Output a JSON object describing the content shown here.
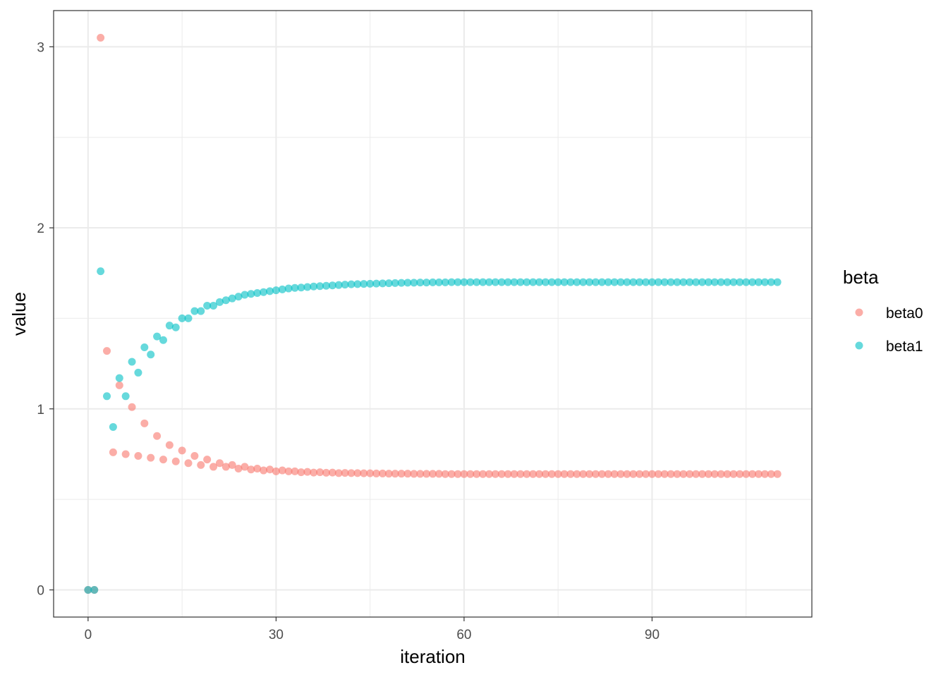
{
  "chart_data": {
    "type": "scatter",
    "title": "",
    "xlabel": "iteration",
    "ylabel": "value",
    "xlim": [
      -5.5,
      115.5
    ],
    "ylim": [
      -0.15,
      3.2
    ],
    "x_ticks": [
      0,
      30,
      60,
      90
    ],
    "y_ticks": [
      0,
      1,
      2,
      3
    ],
    "x_ticks_labels": [
      "0",
      "30",
      "60",
      "90"
    ],
    "y_ticks_labels": [
      "0",
      "1",
      "2",
      "3"
    ],
    "grid": true,
    "legend": {
      "title": "beta",
      "position": "right"
    },
    "series": [
      {
        "name": "beta0",
        "color": "#F8766D",
        "x": [
          0,
          1,
          2,
          3,
          4,
          5,
          6,
          7,
          8,
          9,
          10,
          11,
          12,
          13,
          14,
          15,
          16,
          17,
          18,
          19,
          20,
          21,
          22,
          23,
          24,
          25,
          26,
          27,
          28,
          29,
          30,
          31,
          32,
          33,
          34,
          35,
          36,
          37,
          38,
          39,
          40,
          41,
          42,
          43,
          44,
          45,
          46,
          47,
          48,
          49,
          50,
          51,
          52,
          53,
          54,
          55,
          56,
          57,
          58,
          59,
          60,
          61,
          62,
          63,
          64,
          65,
          66,
          67,
          68,
          69,
          70,
          71,
          72,
          73,
          74,
          75,
          76,
          77,
          78,
          79,
          80,
          81,
          82,
          83,
          84,
          85,
          86,
          87,
          88,
          89,
          90,
          91,
          92,
          93,
          94,
          95,
          96,
          97,
          98,
          99,
          100,
          101,
          102,
          103,
          104,
          105,
          106,
          107,
          108,
          109,
          110
        ],
        "y": [
          0,
          0,
          3.05,
          1.32,
          0.76,
          1.13,
          0.75,
          1.01,
          0.74,
          0.92,
          0.73,
          0.85,
          0.72,
          0.8,
          0.71,
          0.77,
          0.7,
          0.74,
          0.69,
          0.72,
          0.68,
          0.7,
          0.68,
          0.69,
          0.67,
          0.68,
          0.665,
          0.67,
          0.66,
          0.665,
          0.655,
          0.66,
          0.655,
          0.655,
          0.65,
          0.652,
          0.648,
          0.65,
          0.647,
          0.648,
          0.645,
          0.646,
          0.645,
          0.645,
          0.644,
          0.644,
          0.643,
          0.643,
          0.642,
          0.642,
          0.642,
          0.642,
          0.641,
          0.641,
          0.641,
          0.641,
          0.641,
          0.64,
          0.64,
          0.64,
          0.64,
          0.64,
          0.64,
          0.64,
          0.64,
          0.64,
          0.64,
          0.64,
          0.64,
          0.64,
          0.64,
          0.64,
          0.64,
          0.64,
          0.64,
          0.64,
          0.64,
          0.64,
          0.64,
          0.64,
          0.64,
          0.64,
          0.64,
          0.64,
          0.64,
          0.64,
          0.64,
          0.64,
          0.64,
          0.64,
          0.64,
          0.64,
          0.64,
          0.64,
          0.64,
          0.64,
          0.64,
          0.64,
          0.64,
          0.64,
          0.64,
          0.64,
          0.64,
          0.64,
          0.64,
          0.64,
          0.64,
          0.64,
          0.64,
          0.64,
          0.64
        ]
      },
      {
        "name": "beta1",
        "color": "#00BFC4",
        "x": [
          0,
          1,
          2,
          3,
          4,
          5,
          6,
          7,
          8,
          9,
          10,
          11,
          12,
          13,
          14,
          15,
          16,
          17,
          18,
          19,
          20,
          21,
          22,
          23,
          24,
          25,
          26,
          27,
          28,
          29,
          30,
          31,
          32,
          33,
          34,
          35,
          36,
          37,
          38,
          39,
          40,
          41,
          42,
          43,
          44,
          45,
          46,
          47,
          48,
          49,
          50,
          51,
          52,
          53,
          54,
          55,
          56,
          57,
          58,
          59,
          60,
          61,
          62,
          63,
          64,
          65,
          66,
          67,
          68,
          69,
          70,
          71,
          72,
          73,
          74,
          75,
          76,
          77,
          78,
          79,
          80,
          81,
          82,
          83,
          84,
          85,
          86,
          87,
          88,
          89,
          90,
          91,
          92,
          93,
          94,
          95,
          96,
          97,
          98,
          99,
          100,
          101,
          102,
          103,
          104,
          105,
          106,
          107,
          108,
          109,
          110
        ],
        "y": [
          0,
          0,
          1.76,
          1.07,
          0.9,
          1.17,
          1.07,
          1.26,
          1.2,
          1.34,
          1.3,
          1.4,
          1.38,
          1.46,
          1.45,
          1.5,
          1.5,
          1.54,
          1.54,
          1.57,
          1.57,
          1.59,
          1.6,
          1.61,
          1.62,
          1.63,
          1.635,
          1.64,
          1.645,
          1.65,
          1.655,
          1.66,
          1.665,
          1.668,
          1.67,
          1.673,
          1.676,
          1.678,
          1.68,
          1.682,
          1.684,
          1.686,
          1.688,
          1.689,
          1.69,
          1.691,
          1.692,
          1.693,
          1.694,
          1.695,
          1.696,
          1.697,
          1.697,
          1.698,
          1.698,
          1.699,
          1.699,
          1.699,
          1.7,
          1.7,
          1.7,
          1.7,
          1.7,
          1.7,
          1.7,
          1.7,
          1.7,
          1.7,
          1.7,
          1.7,
          1.7,
          1.7,
          1.7,
          1.7,
          1.7,
          1.7,
          1.7,
          1.7,
          1.7,
          1.7,
          1.7,
          1.7,
          1.7,
          1.7,
          1.7,
          1.7,
          1.7,
          1.7,
          1.7,
          1.7,
          1.7,
          1.7,
          1.7,
          1.7,
          1.7,
          1.7,
          1.7,
          1.7,
          1.7,
          1.7,
          1.7,
          1.7,
          1.7,
          1.7,
          1.7,
          1.7,
          1.7,
          1.7,
          1.7,
          1.7,
          1.7
        ]
      }
    ]
  }
}
